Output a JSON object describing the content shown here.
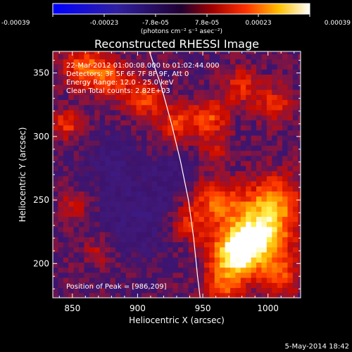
{
  "chart_data": {
    "type": "heatmap",
    "title": "Reconstructed RHESSI Image",
    "xlabel": "Heliocentric X (arcsec)",
    "ylabel": "Heliocentric Y (arcsec)",
    "xlim": [
      835,
      1025
    ],
    "ylim": [
      173,
      367
    ],
    "x_ticks": [
      850,
      900,
      950,
      1000
    ],
    "y_ticks": [
      200,
      250,
      300,
      350
    ],
    "colorbar": {
      "ticks": [
        "-0.00039",
        "-0.00023",
        "-7.8e-05",
        "7.8e-05",
        "0.00023",
        "0.00039"
      ],
      "range": [
        -0.00039,
        0.00039
      ],
      "label": "(photons cm⁻² s⁻¹ asec⁻²)"
    },
    "annotations": [
      "22-Mar-2012 01:00:08.000 to 01:02:44.000",
      "Detectors: 3F 5F 6F 7F 8F 9F, Att 0",
      "Energy Range: 12.0 - 25.0 keV",
      "Clean     Total counts: 2.82E+03"
    ],
    "peak_label": "Position of Peak = [986,209]",
    "date_stamp": "5-May-2014 18:42",
    "limb_curve": [
      [
        909,
        367
      ],
      [
        918,
        340
      ],
      [
        926,
        310
      ],
      [
        933,
        280
      ],
      [
        939,
        250
      ],
      [
        943,
        220
      ],
      [
        946,
        190
      ],
      [
        948,
        173
      ]
    ],
    "sources": [
      {
        "x": 990,
        "y": 220,
        "amp": 0.95,
        "r": 18
      },
      {
        "x": 972,
        "y": 205,
        "amp": 0.6,
        "r": 12
      },
      {
        "x": 1005,
        "y": 250,
        "amp": 0.5,
        "r": 15
      },
      {
        "x": 960,
        "y": 250,
        "amp": 0.45,
        "r": 12
      },
      {
        "x": 940,
        "y": 232,
        "amp": 0.35,
        "r": 10
      },
      {
        "x": 860,
        "y": 355,
        "amp": 0.5,
        "r": 12
      },
      {
        "x": 880,
        "y": 345,
        "amp": 0.4,
        "r": 10
      },
      {
        "x": 905,
        "y": 330,
        "amp": 0.45,
        "r": 10
      },
      {
        "x": 930,
        "y": 310,
        "amp": 0.4,
        "r": 10
      },
      {
        "x": 955,
        "y": 315,
        "amp": 0.45,
        "r": 10
      },
      {
        "x": 980,
        "y": 340,
        "amp": 0.35,
        "r": 10
      },
      {
        "x": 1005,
        "y": 325,
        "amp": 0.35,
        "r": 10
      },
      {
        "x": 845,
        "y": 310,
        "amp": 0.4,
        "r": 8
      },
      {
        "x": 965,
        "y": 180,
        "amp": 0.4,
        "r": 10
      },
      {
        "x": 1010,
        "y": 190,
        "amp": 0.35,
        "r": 10
      },
      {
        "x": 900,
        "y": 235,
        "amp": -0.2,
        "r": 20
      },
      {
        "x": 880,
        "y": 280,
        "amp": -0.18,
        "r": 15
      },
      {
        "x": 870,
        "y": 210,
        "amp": 0.2,
        "r": 8
      },
      {
        "x": 850,
        "y": 245,
        "amp": 0.25,
        "r": 8
      },
      {
        "x": 925,
        "y": 270,
        "amp": -0.15,
        "r": 12
      },
      {
        "x": 960,
        "y": 290,
        "amp": 0.25,
        "r": 8
      }
    ]
  }
}
